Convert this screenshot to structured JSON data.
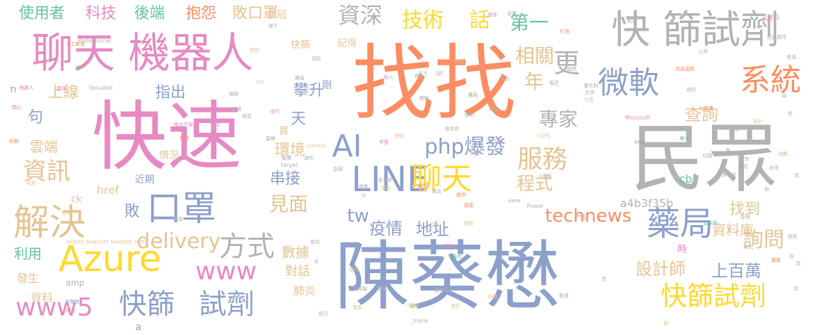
{
  "palette": [
    "#66c2a5",
    "#fc8d62",
    "#8da0cb",
    "#e78ac3",
    "#a6d854",
    "#ffd92f",
    "#e5c494",
    "#b3b3b3"
  ],
  "words": [
    {
      "text": "找找",
      "color": "#fc8d62"
    },
    {
      "text": "民眾",
      "color": "#b3b3b3"
    },
    {
      "text": "陳葵懋",
      "color": "#8da0cb"
    },
    {
      "text": "快速",
      "color": "#e78ac3"
    },
    {
      "text": "聊天 機器人",
      "color": "#e78ac3"
    },
    {
      "text": "快 篩試劑",
      "color": "#b3b3b3"
    },
    {
      "text": "Azure",
      "color": "#ffd92f"
    },
    {
      "text": "LINE",
      "color": "#8da0cb"
    },
    {
      "text": "聊天",
      "color": "#ffd92f"
    },
    {
      "text": "口罩",
      "color": "#8da0cb"
    },
    {
      "text": "微軟",
      "color": "#8da0cb"
    },
    {
      "text": "系統",
      "color": "#fc8d62"
    },
    {
      "text": "藥局",
      "color": "#8da0cb"
    },
    {
      "text": "解決",
      "color": "#e5c494"
    },
    {
      "text": "資訊",
      "color": "#e5c494"
    },
    {
      "text": "快篩試劑",
      "color": "#ffd92f"
    },
    {
      "text": "快篩",
      "color": "#8da0cb"
    },
    {
      "text": "試劑",
      "color": "#8da0cb"
    },
    {
      "text": "服務",
      "color": "#e5c494"
    },
    {
      "text": "AI",
      "color": "#8da0cb"
    },
    {
      "text": "www5",
      "color": "#e78ac3"
    },
    {
      "text": "www",
      "color": "#e78ac3"
    },
    {
      "text": "方式",
      "color": "#b3b3b3"
    },
    {
      "text": "更",
      "color": "#b3b3b3"
    },
    {
      "text": "資深",
      "color": "#b3b3b3"
    },
    {
      "text": "技術",
      "color": "#ffd92f"
    },
    {
      "text": "話",
      "color": "#ffd92f"
    },
    {
      "text": "php爆發",
      "color": "#8da0cb"
    },
    {
      "text": "technews",
      "color": "#fc8d62"
    },
    {
      "text": "delivery",
      "color": "#e5c494"
    },
    {
      "text": "tw",
      "color": "#8da0cb"
    },
    {
      "text": "詢問",
      "color": "#e5c494"
    },
    {
      "text": "第一",
      "color": "#66c2a5"
    },
    {
      "text": "相關",
      "color": "#e5c494"
    },
    {
      "text": "年",
      "color": "#e5c494"
    },
    {
      "text": "專家",
      "color": "#b3b3b3"
    },
    {
      "text": "見面",
      "color": "#e5c494"
    },
    {
      "text": "疫情",
      "color": "#8da0cb"
    },
    {
      "text": "地址",
      "color": "#8da0cb"
    },
    {
      "text": "程式",
      "color": "#e5c494"
    },
    {
      "text": "設計師",
      "color": "#e5c494"
    },
    {
      "text": "上百萬",
      "color": "#8da0cb"
    },
    {
      "text": "查詢",
      "color": "#e5c494"
    },
    {
      "text": "找到",
      "color": "#e5c494"
    },
    {
      "text": "資料庫",
      "color": "#e5c494"
    },
    {
      "text": "上線",
      "color": "#e5c494"
    },
    {
      "text": "攀升",
      "color": "#8da0cb"
    },
    {
      "text": "指出",
      "color": "#8da0cb"
    },
    {
      "text": "天",
      "color": "#8da0cb"
    },
    {
      "text": "使用者",
      "color": "#66c2a5"
    },
    {
      "text": "科技",
      "color": "#e78ac3"
    },
    {
      "text": "後端",
      "color": "#66c2a5"
    },
    {
      "text": "抱怨",
      "color": "#fc8d62"
    },
    {
      "text": "敗口罩",
      "color": "#e5c494"
    },
    {
      "text": "雲端",
      "color": "#e5c494"
    },
    {
      "text": "句",
      "color": "#8da0cb"
    },
    {
      "text": "環境",
      "color": "#e5c494"
    },
    {
      "text": "串接",
      "color": "#8da0cb"
    },
    {
      "text": "敗",
      "color": "#8da0cb"
    },
    {
      "text": "數據",
      "color": "#e5c494"
    },
    {
      "text": "對話",
      "color": "#e5c494"
    },
    {
      "text": "肺炎",
      "color": "#e5c494"
    },
    {
      "text": "利用",
      "color": "#66c2a5"
    },
    {
      "text": "發生",
      "color": "#e5c494"
    },
    {
      "text": "資料",
      "color": "#e5c494"
    },
    {
      "text": "a4b3f35b",
      "color": "#b3b3b3"
    },
    {
      "text": "ck",
      "color": "#e5c494"
    },
    {
      "text": "href",
      "color": "#e5c494"
    },
    {
      "text": "cb",
      "color": "#66c2a5"
    },
    {
      "text": "近期",
      "color": "#8da0cb"
    },
    {
      "text": "情況",
      "color": "#e5c494"
    },
    {
      "text": "新冠",
      "color": "#e5c494"
    },
    {
      "text": "快篩",
      "color": "#e5c494"
    },
    {
      "text": "記得",
      "color": "#e5c494"
    },
    {
      "text": "剛",
      "color": "#8da0cb"
    },
    {
      "text": "買",
      "color": "#e5c494"
    },
    {
      "text": "時",
      "color": "#e78ac3"
    },
    {
      "text": "amp",
      "color": "#b3b3b3"
    },
    {
      "text": "a",
      "color": "#8da0cb"
    },
    {
      "text": "n",
      "color": "#8da0cb"
    },
    {
      "text": "Professional",
      "color": "#b3b3b3"
    },
    {
      "text": "Valuable",
      "color": "#b3b3b3"
    },
    {
      "text": "zoneid",
      "color": "#e5c494"
    },
    {
      "text": "Microsoft",
      "color": "#e78ac3"
    },
    {
      "text": "LUIS",
      "color": "#e5c494"
    },
    {
      "text": "LINE",
      "color": "#b3b3b3"
    },
    {
      "text": "Power",
      "color": "#b3b3b3"
    },
    {
      "text": "aww",
      "color": "#b3b3b3"
    },
    {
      "text": "_blank",
      "color": "#b3b3b3"
    },
    {
      "text": "INSERT_RANDOM_NUMBER_HERE",
      "color": "#e5c494"
    },
    {
      "text": "target",
      "color": "#b3b3b3"
    },
    {
      "text": "img",
      "color": "#8da0cb"
    },
    {
      "text": "src",
      "color": "#e5c494"
    },
    {
      "text": "UI",
      "color": "#e78ac3"
    },
    {
      "text": "BI",
      "color": "#e5c494"
    },
    {
      "text": "機器人",
      "color": "#e78ac3"
    },
    {
      "text": "人工智慧",
      "color": "#fc8d62"
    },
    {
      "text": "統一",
      "color": "#66c2a5"
    },
    {
      "text": "選擇",
      "color": "#e78ac3"
    },
    {
      "text": "關心",
      "color": "#e78ac3"
    },
    {
      "text": "社群",
      "color": "#fc8d62"
    },
    {
      "text": "收到",
      "color": "#e5c494"
    },
    {
      "text": "發送",
      "color": "#e5c494"
    },
    {
      "text": "價值",
      "color": "#b3b3b3"
    },
    {
      "text": "安撫性",
      "color": "#8da0cb"
    },
    {
      "text": "成功",
      "color": "#fc8d62"
    },
    {
      "text": "每日",
      "color": "#b3b3b3"
    },
    {
      "text": "一等",
      "color": "#b3b3b3"
    },
    {
      "text": "便民",
      "color": "#e5c494"
    },
    {
      "text": "時間",
      "color": "#e5c494"
    },
    {
      "text": "數量",
      "color": "#b3b3b3"
    },
    {
      "text": "任職",
      "color": "#b3b3b3"
    },
    {
      "text": "進一步",
      "color": "#b3b3b3"
    },
    {
      "text": "多元",
      "color": "#8da0cb"
    },
    {
      "text": "未來",
      "color": "#b3b3b3"
    },
    {
      "text": "分析",
      "color": "#fc8d62"
    },
    {
      "text": "專注",
      "color": "#66c2a5"
    },
    {
      "text": "快篩劑",
      "color": "#fc8d62"
    },
    {
      "text": "設計",
      "color": "#e5c494"
    },
    {
      "text": "政府",
      "color": "#b3b3b3"
    },
    {
      "text": "採用",
      "color": "#b3b3b3"
    },
    {
      "text": "銷售",
      "color": "#b3b3b3"
    },
    {
      "text": "狀況",
      "color": "#b3b3b3"
    },
    {
      "text": "常",
      "color": "#b3b3b3"
    },
    {
      "text": "萬集",
      "color": "#fc8d62"
    },
    {
      "text": "門檻",
      "color": "#b3b3b3"
    },
    {
      "text": "資訊系",
      "color": "#66c2a5"
    },
    {
      "text": "普及率",
      "color": "#b3b3b3"
    },
    {
      "text": "出發點",
      "color": "#b3b3b3"
    },
    {
      "text": "盧分出",
      "color": "#b3b3b3"
    },
    {
      "text": "速度",
      "color": "#fc8d62"
    },
    {
      "text": "提供",
      "color": "#fc8d62"
    },
    {
      "text": "經驗",
      "color": "#e5c494"
    },
    {
      "text": "認知",
      "color": "#e5c494"
    },
    {
      "text": "事實",
      "color": "#e78ac3"
    },
    {
      "text": "操作",
      "color": "#66c2a5"
    },
    {
      "text": "先前",
      "color": "#fc8d62"
    },
    {
      "text": "低延遲性",
      "color": "#b3b3b3"
    },
    {
      "text": "作品",
      "color": "#b3b3b3"
    },
    {
      "text": "清單",
      "color": "#b3b3b3"
    },
    {
      "text": "語音",
      "color": "#e78ac3"
    },
    {
      "text": "創造",
      "color": "#b3b3b3"
    },
    {
      "text": "打造",
      "color": "#fc8d62"
    },
    {
      "text": "自然",
      "color": "#8da0cb"
    },
    {
      "text": "擬定",
      "color": "#b3b3b3"
    },
    {
      "text": "文字",
      "color": "#e78ac3"
    },
    {
      "text": "位置",
      "color": "#e5c494"
    },
    {
      "text": "高延遲性",
      "color": "#fc8d62"
    },
    {
      "text": "實名制",
      "color": "#b3b3b3"
    },
    {
      "text": "延遲",
      "color": "#b3b3b3"
    },
    {
      "text": "平台",
      "color": "#b3b3b3"
    },
    {
      "text": "接收到",
      "color": "#b3b3b3"
    },
    {
      "text": "醫制",
      "color": "#b3b3b3"
    },
    {
      "text": "核心",
      "color": "#e5c494"
    },
    {
      "text": "事先",
      "color": "#b3b3b3"
    },
    {
      "text": "體驗",
      "color": "#b3b3b3"
    },
    {
      "text": "告知",
      "color": "#e5c494"
    },
    {
      "text": "最佳",
      "color": "#b3b3b3"
    },
    {
      "text": "首下",
      "color": "#b3b3b3"
    },
    {
      "text": "輸入",
      "color": "#b3b3b3"
    },
    {
      "text": "破千",
      "color": "#b3b3b3"
    },
    {
      "text": "協助",
      "color": "#b3b3b3"
    },
    {
      "text": "預期",
      "color": "#e5c494"
    },
    {
      "text": "購買",
      "color": "#b3b3b3"
    },
    {
      "text": "考量",
      "color": "#e78ac3"
    },
    {
      "text": "連結",
      "color": "#e5c494"
    },
    {
      "text": "回應",
      "color": "#b3b3b3"
    },
    {
      "text": "識別",
      "color": "#b3b3b3"
    },
    {
      "text": "架構",
      "color": "#b3b3b3"
    },
    {
      "text": "理解",
      "color": "#b3b3b3"
    },
    {
      "text": "接受",
      "color": "#b3b3b3"
    },
    {
      "text": "推出",
      "color": "#b3b3b3"
    },
    {
      "text": "推出不斷",
      "color": "#e78ac3"
    },
    {
      "text": "資源",
      "color": "#fc8d62"
    },
    {
      "text": "吸引",
      "color": "#e78ac3"
    },
    {
      "text": "靈機",
      "color": "#b3b3b3"
    },
    {
      "text": "擴展",
      "color": "#b3b3b3"
    },
    {
      "text": "讓你",
      "color": "#b3b3b3"
    },
    {
      "text": "意圖",
      "color": "#b3b3b3"
    },
    {
      "text": "複數",
      "color": "#b3b3b3"
    },
    {
      "text": "有",
      "color": "#e5c494"
    },
    {
      "text": "當有",
      "color": "#e5c494"
    },
    {
      "text": "複製",
      "color": "#e78ac3"
    },
    {
      "text": "語言",
      "color": "#b3b3b3"
    },
    {
      "text": "表達",
      "color": "#b3b3b3"
    },
    {
      "text": "尋找",
      "color": "#b3b3b3"
    },
    {
      "text": "合",
      "color": "#b3b3b3"
    },
    {
      "text": "操作",
      "color": "#e5c494"
    },
    {
      "text": "擔任",
      "color": "#b3b3b3"
    },
    {
      "text": "醫療",
      "color": "#e5c494"
    },
    {
      "text": "蒐集",
      "color": "#e5c494"
    },
    {
      "text": "無",
      "color": "#b3b3b3"
    },
    {
      "text": "急",
      "color": "#b3b3b3"
    },
    {
      "text": "低",
      "color": "#b3b3b3"
    },
    {
      "text": "款",
      "color": "#b3b3b3"
    },
    {
      "text": "外",
      "color": "#fc8d62"
    },
    {
      "text": "高",
      "color": "#b3b3b3"
    },
    {
      "text": "中",
      "color": "#b3b3b3"
    },
    {
      "text": "次",
      "color": "#b3b3b3"
    },
    {
      "text": "非",
      "color": "#b3b3b3"
    },
    {
      "text": "找",
      "color": "#b3b3b3"
    },
    {
      "text": "早",
      "color": "#b3b3b3"
    },
    {
      "text": "設",
      "color": "#b3b3b3"
    },
    {
      "text": "公用",
      "color": "#b3b3b3"
    }
  ]
}
